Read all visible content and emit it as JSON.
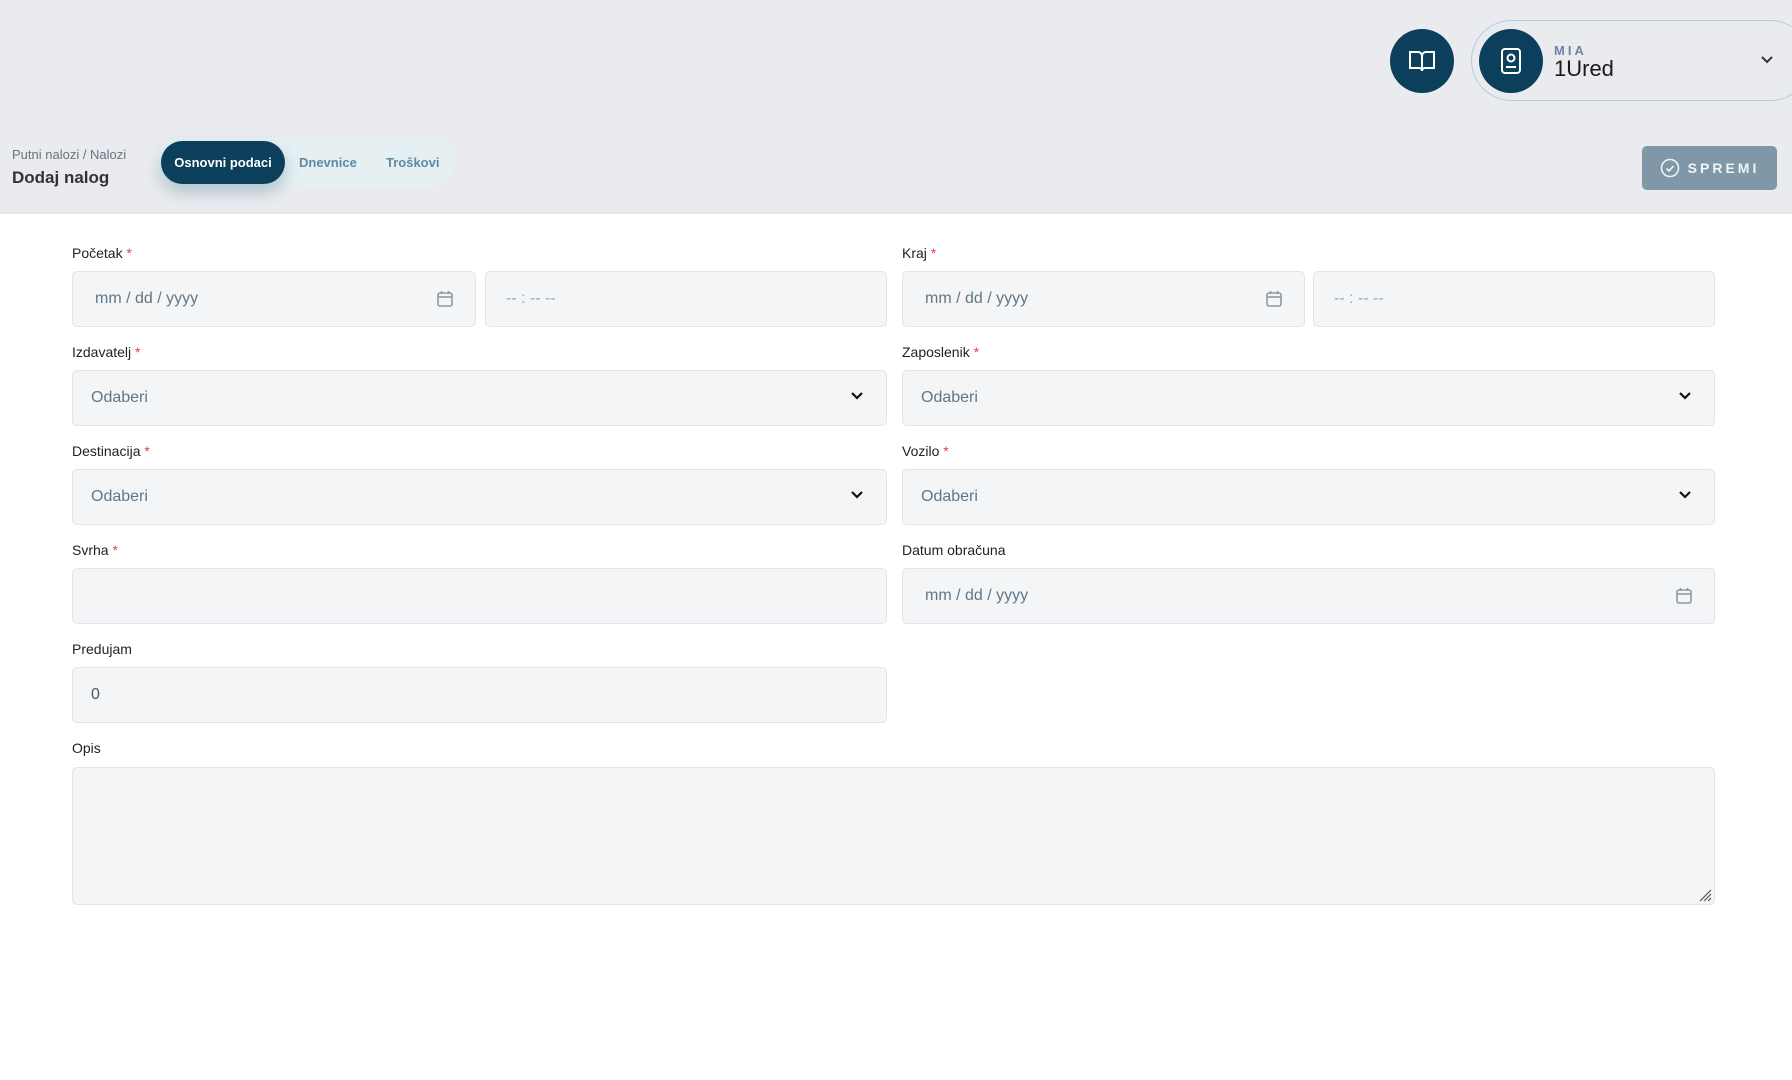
{
  "header": {
    "org_label": "MIA",
    "org_name": "1Ured"
  },
  "breadcrumb": "Putni nalozi / Nalozi",
  "page_title": "Dodaj nalog",
  "tabs": [
    {
      "label": "Osnovni podaci",
      "active": true
    },
    {
      "label": "Dnevnice"
    },
    {
      "label": "Troškovi"
    }
  ],
  "save_label": "SPREMI",
  "form": {
    "pocetak": {
      "label": "Početak",
      "date_placeholder": "mm / dd / yyyy",
      "time_placeholder": "-- : --  --"
    },
    "kraj": {
      "label": "Kraj",
      "date_placeholder": "mm / dd / yyyy",
      "time_placeholder": "-- : --  --"
    },
    "izdavatelj": {
      "label": "Izdavatelj",
      "value": "Odaberi"
    },
    "zaposlenik": {
      "label": "Zaposlenik",
      "value": "Odaberi"
    },
    "destinacija": {
      "label": "Destinacija",
      "value": "Odaberi"
    },
    "vozilo": {
      "label": "Vozilo",
      "value": "Odaberi"
    },
    "svrha": {
      "label": "Svrha",
      "value": ""
    },
    "datum_obracuna": {
      "label": "Datum obračuna",
      "date_placeholder": "mm / dd / yyyy"
    },
    "predujam": {
      "label": "Predujam",
      "value": "0"
    },
    "opis": {
      "label": "Opis",
      "value": ""
    },
    "required_mark": "*"
  },
  "colors": {
    "primary": "#0b3f5c",
    "save_disabled": "#7f97a6",
    "required": "#e53e3e"
  }
}
